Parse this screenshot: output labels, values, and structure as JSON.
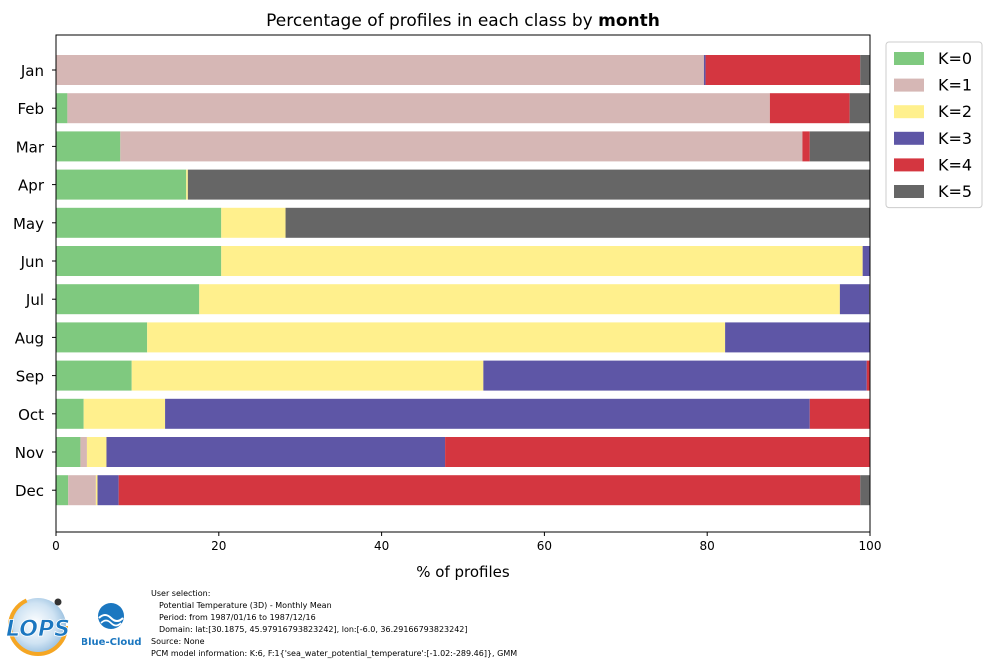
{
  "chart_data": {
    "type": "bar",
    "orientation": "horizontal",
    "stacked": true,
    "title_prefix": "Percentage of profiles in each class by ",
    "title_bold": "month",
    "xlabel": "% of profiles",
    "ylabel": "",
    "xlim": [
      0,
      100
    ],
    "xticks": [
      0,
      20,
      40,
      60,
      80,
      100
    ],
    "grid": false,
    "legend_position": "top-right outside",
    "categories": [
      "Jan",
      "Feb",
      "Mar",
      "Apr",
      "May",
      "Jun",
      "Jul",
      "Aug",
      "Sep",
      "Oct",
      "Nov",
      "Dec"
    ],
    "series": [
      {
        "name": "K=0",
        "color": "#7fc97f",
        "values": [
          0.0,
          1.4,
          7.9,
          16.0,
          20.3,
          20.3,
          17.6,
          11.2,
          9.3,
          3.4,
          3.0,
          1.5
        ]
      },
      {
        "name": "K=1",
        "color": "#d6b7b5",
        "values": [
          79.6,
          86.3,
          83.8,
          0.0,
          0.0,
          0.0,
          0.0,
          0.0,
          0.0,
          0.0,
          0.8,
          3.4
        ]
      },
      {
        "name": "K=2",
        "color": "#fff08d",
        "values": [
          0.0,
          0.0,
          0.0,
          0.2,
          7.9,
          78.8,
          78.7,
          71.0,
          43.2,
          10.0,
          2.4,
          0.2
        ]
      },
      {
        "name": "K=3",
        "color": "#5e56a6",
        "values": [
          0.2,
          0.0,
          0.0,
          0.0,
          0.0,
          0.9,
          3.6,
          17.8,
          47.1,
          79.2,
          41.6,
          2.6
        ]
      },
      {
        "name": "K=4",
        "color": "#d43640",
        "values": [
          19.0,
          9.8,
          0.9,
          0.0,
          0.0,
          0.0,
          0.0,
          0.0,
          0.4,
          7.4,
          52.2,
          91.1
        ]
      },
      {
        "name": "K=5",
        "color": "#666666",
        "values": [
          1.2,
          2.5,
          7.4,
          83.8,
          71.8,
          0.0,
          0.1,
          0.0,
          0.0,
          0.0,
          0.0,
          1.2
        ]
      }
    ]
  },
  "footer": {
    "lines": [
      "User selection:",
      "Potential Temperature (3D) - Monthly Mean",
      "Period: from 1987/01/16 to 1987/12/16",
      "Domain: lat:[30.1875, 45.97916793823242], lon:[-6.0, 36.29166793823242]",
      "Source: None",
      "PCM model information: K:6, F:1{'sea_water_potential_temperature':[-1.02:-289.46]}, GMM"
    ]
  },
  "logos": {
    "lops": "LOPS",
    "bluecloud": "Blue-Cloud"
  },
  "colors": {
    "axis": "#000000",
    "lops_orange": "#f5a623",
    "lops_blue": "#1b77c0",
    "bluecloud_blue": "#1b77c0"
  }
}
